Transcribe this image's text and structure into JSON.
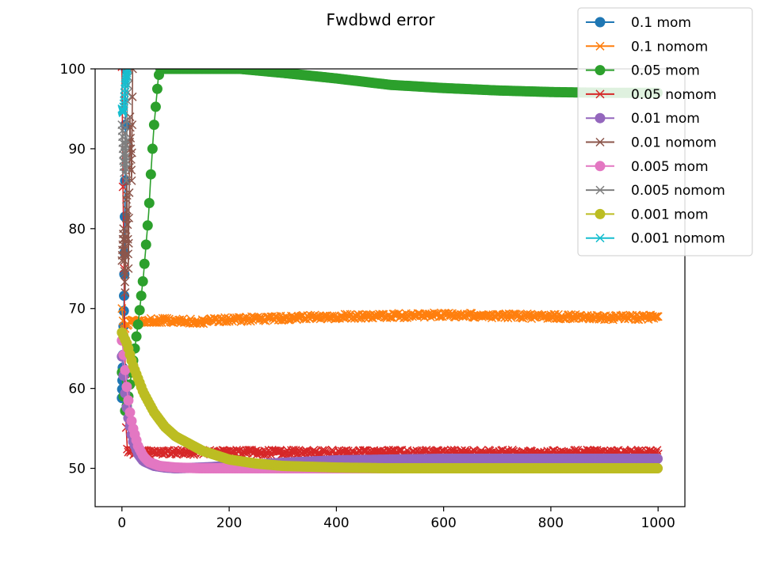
{
  "chart_data": {
    "type": "line",
    "title": "Fwdbwd error",
    "xlabel": "",
    "ylabel": "",
    "xlim": [
      -50,
      1050
    ],
    "ylim": [
      45.2,
      100
    ],
    "xticks": [
      0,
      200,
      400,
      600,
      800,
      1000
    ],
    "yticks": [
      50,
      60,
      70,
      80,
      90,
      100
    ],
    "grid": false,
    "legend_position": "top-right",
    "series": [
      {
        "name": "0.1 mom",
        "color": "#1f77b4",
        "marker": "circle",
        "x": [
          0,
          1,
          2,
          3,
          4,
          5,
          6,
          7
        ],
        "y": [
          58.8,
          61.0,
          64.2,
          67.8,
          71.6,
          77.0,
          86.0,
          100
        ]
      },
      {
        "name": "0.1 nomom",
        "color": "#ff7f0e",
        "marker": "x",
        "x": [
          0,
          2,
          4,
          10,
          20,
          50,
          100,
          150,
          200,
          300,
          400,
          500,
          600,
          700,
          800,
          900,
          1000
        ],
        "y": [
          70.0,
          68.5,
          67.6,
          68.0,
          68.3,
          68.5,
          68.5,
          68.4,
          68.6,
          68.8,
          69.0,
          69.1,
          69.2,
          69.1,
          69.0,
          68.9,
          68.9
        ]
      },
      {
        "name": "0.05 mom",
        "color": "#2ca02c",
        "marker": "circle",
        "x": [
          0,
          5,
          10,
          20,
          30,
          40,
          50,
          55,
          60,
          64,
          68,
          72,
          220,
          300,
          400,
          500,
          600,
          700,
          800,
          900,
          1000
        ],
        "y": [
          62,
          57,
          58,
          63,
          68,
          74,
          82,
          88,
          93,
          96,
          99,
          100,
          100,
          99.5,
          98.8,
          98.0,
          97.6,
          97.3,
          97.1,
          97.0,
          97.0
        ]
      },
      {
        "name": "0.05 nomom",
        "color": "#d62728",
        "marker": "x",
        "x": [
          0,
          2,
          4,
          6,
          8,
          10,
          12,
          20,
          50,
          100,
          200,
          400,
          600,
          800,
          1000
        ],
        "y": [
          100,
          85,
          75,
          62,
          55,
          52.5,
          52.0,
          52.0,
          52.0,
          52.0,
          52.0,
          52.0,
          52.0,
          52.0,
          52.0
        ]
      },
      {
        "name": "0.01 mom",
        "color": "#9467bd",
        "marker": "circle",
        "x": [
          0,
          5,
          10,
          20,
          30,
          40,
          60,
          80,
          100,
          150,
          200,
          300,
          400,
          500,
          600,
          700,
          800,
          900,
          1000
        ],
        "y": [
          64,
          60,
          57,
          53.5,
          51.8,
          50.9,
          50.3,
          50.1,
          50.0,
          50.1,
          50.3,
          50.7,
          51.0,
          51.1,
          51.2,
          51.2,
          51.2,
          51.2,
          51.2
        ]
      },
      {
        "name": "0.01 nomom",
        "color": "#8c564b",
        "marker": "x",
        "x": [
          0,
          3,
          6,
          9,
          12,
          15,
          18,
          20
        ],
        "y": [
          76,
          80,
          72,
          86,
          75,
          94,
          86,
          100
        ]
      },
      {
        "name": "0.005 mom",
        "color": "#e377c2",
        "marker": "circle",
        "x": [
          0,
          5,
          10,
          15,
          20,
          30,
          40,
          50,
          70,
          100,
          150,
          200,
          300,
          400,
          500,
          600,
          700,
          800,
          900,
          1000
        ],
        "y": [
          66,
          63,
          59.5,
          57,
          55.2,
          52.8,
          51.5,
          50.8,
          50.3,
          50.1,
          50.0,
          50.0,
          50.0,
          50.0,
          50.0,
          50.0,
          50.0,
          50.0,
          50.0,
          50.0
        ]
      },
      {
        "name": "0.005 nomom",
        "color": "#7f7f7f",
        "marker": "x",
        "x": [
          0,
          2,
          4,
          6,
          8,
          10,
          12
        ],
        "y": [
          93,
          90,
          87,
          92,
          86,
          96,
          100
        ]
      },
      {
        "name": "0.001 mom",
        "color": "#bcbd22",
        "marker": "circle",
        "x": [
          0,
          10,
          20,
          40,
          60,
          80,
          100,
          150,
          200,
          250,
          300,
          400,
          500,
          600,
          700,
          800,
          900,
          1000
        ],
        "y": [
          67,
          65.5,
          63,
          59.5,
          57,
          55.2,
          54,
          52.2,
          51.1,
          50.6,
          50.3,
          50.1,
          50.0,
          50.0,
          50.0,
          50.0,
          50.0,
          50.0
        ]
      },
      {
        "name": "0.001 nomom",
        "color": "#17becf",
        "marker": "x",
        "x": [
          0,
          2,
          4,
          6,
          8,
          10
        ],
        "y": [
          95,
          94.5,
          96,
          98,
          99,
          100
        ]
      }
    ]
  }
}
